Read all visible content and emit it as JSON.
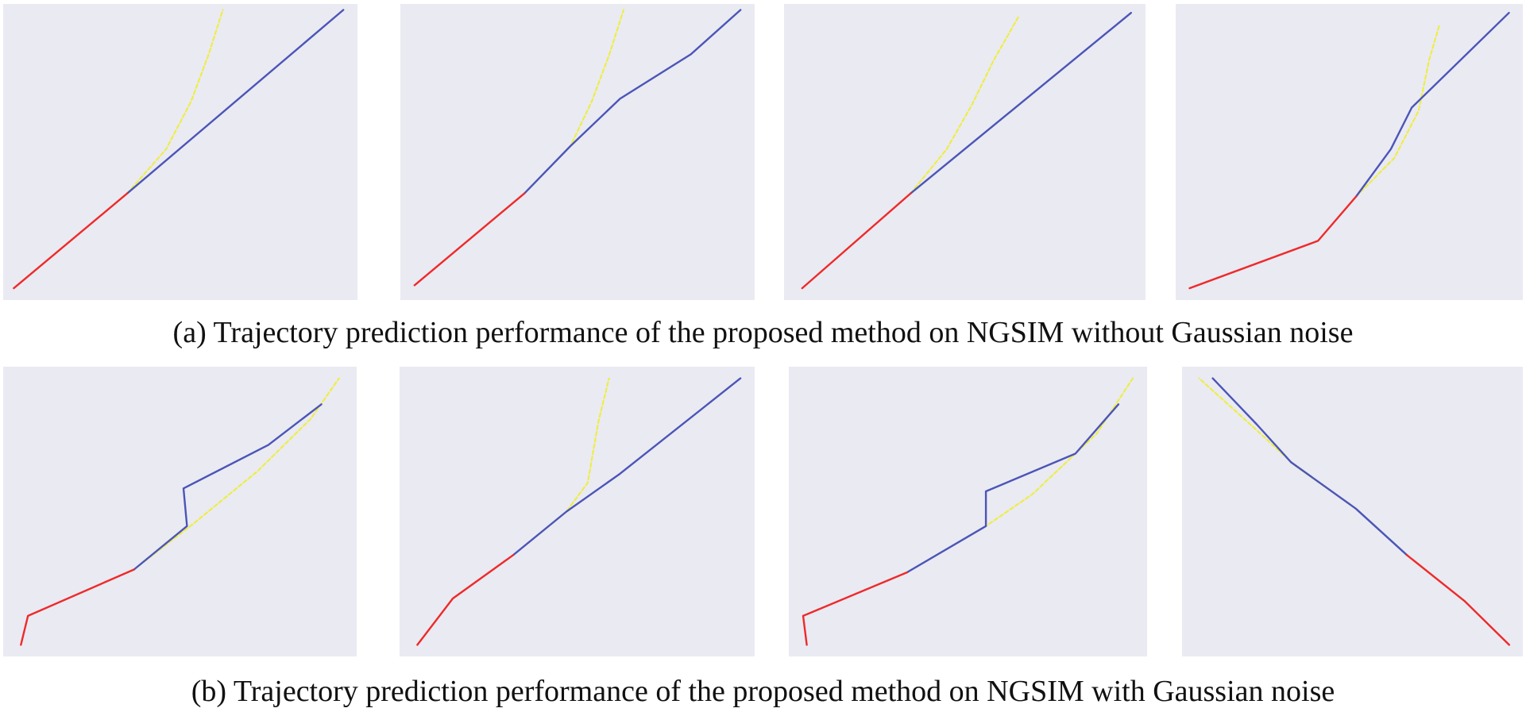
{
  "figure": {
    "caption_a": "(a) Trajectory prediction performance of the proposed method on NGSIM without Gaussian noise",
    "caption_b": "(b) Trajectory prediction performance of the proposed method on NGSIM with Gaussian noise"
  },
  "colors": {
    "background": "#eaeaf2",
    "history": "#ee2a2a",
    "prediction": "#4b55b8",
    "ground_truth": "#eeee3a"
  },
  "chart_data": [
    {
      "type": "line",
      "row": "a",
      "xlim": [
        0,
        1
      ],
      "ylim": [
        0,
        1
      ],
      "grid": false,
      "series": [
        {
          "role": "history",
          "style": "solid",
          "x": [
            0.03,
            0.35
          ],
          "y": [
            0.04,
            0.36
          ]
        },
        {
          "role": "prediction",
          "style": "solid",
          "x": [
            0.35,
            0.96
          ],
          "y": [
            0.36,
            0.98
          ]
        },
        {
          "role": "ground_truth",
          "style": "dashed",
          "x": [
            0.35,
            0.46,
            0.53,
            0.58,
            0.62
          ],
          "y": [
            0.36,
            0.51,
            0.67,
            0.83,
            0.98
          ]
        }
      ]
    },
    {
      "type": "line",
      "row": "a",
      "xlim": [
        0,
        1
      ],
      "ylim": [
        0,
        1
      ],
      "grid": false,
      "series": [
        {
          "role": "history",
          "style": "solid",
          "x": [
            0.04,
            0.35
          ],
          "y": [
            0.05,
            0.36
          ]
        },
        {
          "role": "prediction",
          "style": "solid",
          "x": [
            0.35,
            0.48,
            0.62,
            0.82,
            0.96
          ],
          "y": [
            0.36,
            0.52,
            0.68,
            0.83,
            0.98
          ]
        },
        {
          "role": "ground_truth",
          "style": "dashed",
          "x": [
            0.35,
            0.48,
            0.54,
            0.59,
            0.63
          ],
          "y": [
            0.36,
            0.52,
            0.67,
            0.83,
            0.98
          ]
        }
      ]
    },
    {
      "type": "line",
      "row": "a",
      "xlim": [
        0,
        1
      ],
      "ylim": [
        0,
        1
      ],
      "grid": false,
      "series": [
        {
          "role": "history",
          "style": "solid",
          "x": [
            0.05,
            0.35
          ],
          "y": [
            0.04,
            0.36
          ]
        },
        {
          "role": "prediction",
          "style": "solid",
          "x": [
            0.35,
            0.96
          ],
          "y": [
            0.36,
            0.97
          ]
        },
        {
          "role": "ground_truth",
          "style": "dashed",
          "x": [
            0.35,
            0.45,
            0.52,
            0.58,
            0.65
          ],
          "y": [
            0.36,
            0.51,
            0.66,
            0.81,
            0.96
          ]
        }
      ]
    },
    {
      "type": "line",
      "row": "a",
      "xlim": [
        0,
        1
      ],
      "ylim": [
        0,
        1
      ],
      "grid": false,
      "series": [
        {
          "role": "history",
          "style": "solid",
          "x": [
            0.04,
            0.41,
            0.52
          ],
          "y": [
            0.04,
            0.2,
            0.35
          ]
        },
        {
          "role": "prediction",
          "style": "solid",
          "x": [
            0.52,
            0.62,
            0.68,
            0.96
          ],
          "y": [
            0.35,
            0.51,
            0.65,
            0.97
          ]
        },
        {
          "role": "ground_truth",
          "style": "dashed",
          "x": [
            0.52,
            0.63,
            0.7,
            0.73,
            0.76
          ],
          "y": [
            0.35,
            0.48,
            0.64,
            0.81,
            0.93
          ]
        }
      ]
    },
    {
      "type": "line",
      "row": "b",
      "xlim": [
        0,
        1
      ],
      "ylim": [
        0,
        1
      ],
      "grid": false,
      "series": [
        {
          "role": "history",
          "style": "solid",
          "x": [
            0.05,
            0.07,
            0.37
          ],
          "y": [
            0.04,
            0.14,
            0.3
          ]
        },
        {
          "role": "prediction",
          "style": "solid",
          "x": [
            0.37,
            0.52,
            0.51,
            0.75,
            0.9
          ],
          "y": [
            0.3,
            0.45,
            0.58,
            0.73,
            0.87
          ]
        },
        {
          "role": "ground_truth",
          "style": "dashed",
          "x": [
            0.37,
            0.54,
            0.72,
            0.87,
            0.95
          ],
          "y": [
            0.3,
            0.46,
            0.64,
            0.82,
            0.96
          ]
        }
      ]
    },
    {
      "type": "line",
      "row": "b",
      "xlim": [
        0,
        1
      ],
      "ylim": [
        0,
        1
      ],
      "grid": false,
      "series": [
        {
          "role": "history",
          "style": "solid",
          "x": [
            0.05,
            0.15,
            0.32
          ],
          "y": [
            0.04,
            0.2,
            0.35
          ]
        },
        {
          "role": "prediction",
          "style": "solid",
          "x": [
            0.32,
            0.47,
            0.62,
            0.96
          ],
          "y": [
            0.35,
            0.5,
            0.63,
            0.96
          ]
        },
        {
          "role": "ground_truth",
          "style": "dashed",
          "x": [
            0.32,
            0.47,
            0.53,
            0.56,
            0.59
          ],
          "y": [
            0.35,
            0.5,
            0.6,
            0.81,
            0.96
          ]
        }
      ]
    },
    {
      "type": "line",
      "row": "b",
      "xlim": [
        0,
        1
      ],
      "ylim": [
        0,
        1
      ],
      "grid": false,
      "series": [
        {
          "role": "history",
          "style": "solid",
          "x": [
            0.05,
            0.04,
            0.33
          ],
          "y": [
            0.04,
            0.14,
            0.29
          ]
        },
        {
          "role": "prediction",
          "style": "solid",
          "x": [
            0.33,
            0.55,
            0.55,
            0.8,
            0.92
          ],
          "y": [
            0.29,
            0.45,
            0.57,
            0.7,
            0.87
          ]
        },
        {
          "role": "ground_truth",
          "style": "dashed",
          "x": [
            0.33,
            0.55,
            0.68,
            0.86,
            0.96
          ],
          "y": [
            0.29,
            0.45,
            0.56,
            0.77,
            0.96
          ]
        }
      ]
    },
    {
      "type": "line",
      "row": "b",
      "xlim": [
        0,
        1
      ],
      "ylim": [
        0,
        1
      ],
      "grid": false,
      "series": [
        {
          "role": "history",
          "style": "solid",
          "x": [
            0.96,
            0.83,
            0.66
          ],
          "y": [
            0.04,
            0.19,
            0.35
          ]
        },
        {
          "role": "prediction",
          "style": "solid",
          "x": [
            0.66,
            0.51,
            0.32,
            0.22,
            0.09
          ],
          "y": [
            0.35,
            0.51,
            0.67,
            0.8,
            0.96
          ]
        },
        {
          "role": "ground_truth",
          "style": "dashed",
          "x": [
            0.66,
            0.51,
            0.33,
            0.22,
            0.05
          ],
          "y": [
            0.35,
            0.51,
            0.66,
            0.78,
            0.96
          ]
        }
      ]
    }
  ]
}
